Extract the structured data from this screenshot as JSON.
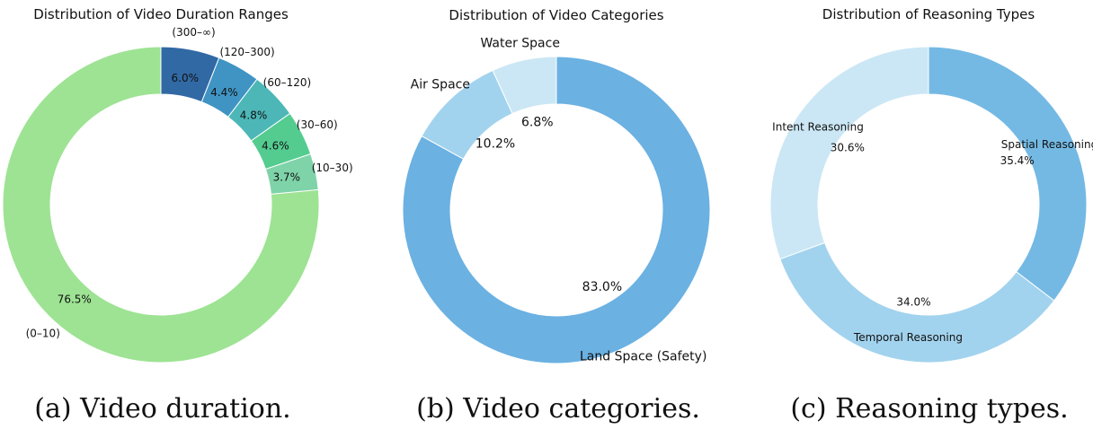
{
  "chart_data": [
    {
      "type": "pie",
      "title": "Distribution of Video Duration Ranges",
      "caption": "(a) Video duration.",
      "slices": [
        {
          "label": "(300–∞)",
          "value": 6.0,
          "value_label": "6.0%",
          "color": "#3169a4"
        },
        {
          "label": "(120–300)",
          "value": 4.4,
          "value_label": "4.4%",
          "color": "#3f94c4"
        },
        {
          "label": "(60–120)",
          "value": 4.8,
          "value_label": "4.8%",
          "color": "#4db7b8"
        },
        {
          "label": "(30–60)",
          "value": 4.6,
          "value_label": "4.6%",
          "color": "#54cc90"
        },
        {
          "label": "(10–30)",
          "value": 3.7,
          "value_label": "3.7%",
          "color": "#7fd3a9"
        },
        {
          "label": "(0–10)",
          "value": 76.5,
          "value_label": "76.5%",
          "color": "#9de393"
        }
      ]
    },
    {
      "type": "pie",
      "title": "Distribution of Video Categories",
      "caption": "(b) Video categories.",
      "slices": [
        {
          "label": "Land Space (Safety)",
          "value": 83.0,
          "value_label": "83.0%",
          "color": "#6bb1e2"
        },
        {
          "label": "Air Space",
          "value": 10.2,
          "value_label": "10.2%",
          "color": "#a2d3ee"
        },
        {
          "label": "Water Space",
          "value": 6.8,
          "value_label": "6.8%",
          "color": "#cbe7f5"
        }
      ]
    },
    {
      "type": "pie",
      "title": "Distribution of Reasoning Types",
      "caption": "(c) Reasoning types.",
      "slices": [
        {
          "label": "Spatial Reasoning",
          "value": 35.4,
          "value_label": "35.4%",
          "color": "#74b9e4"
        },
        {
          "label": "Temporal Reasoning",
          "value": 34.0,
          "value_label": "34.0%",
          "color": "#a2d3ee"
        },
        {
          "label": "Intent Reasoning",
          "value": 30.6,
          "value_label": "30.6%",
          "color": "#cbe7f5"
        }
      ]
    }
  ]
}
